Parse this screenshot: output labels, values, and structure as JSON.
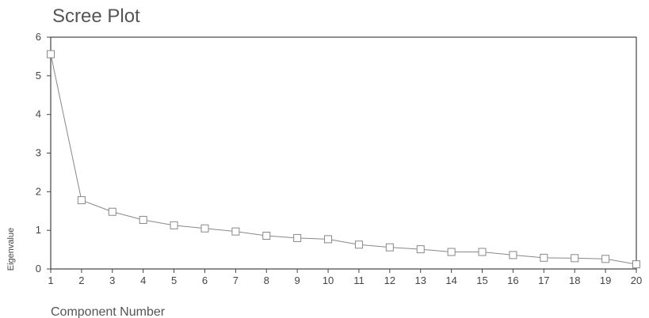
{
  "chart_data": {
    "type": "line",
    "title": "Scree Plot",
    "xlabel": "Component Number",
    "ylabel": "Eigenvalue",
    "x": [
      1,
      2,
      3,
      4,
      5,
      6,
      7,
      8,
      9,
      10,
      11,
      12,
      13,
      14,
      15,
      16,
      17,
      18,
      19,
      20
    ],
    "series": [
      {
        "values": [
          5.56,
          1.78,
          1.48,
          1.27,
          1.13,
          1.05,
          0.97,
          0.86,
          0.8,
          0.77,
          0.63,
          0.56,
          0.51,
          0.44,
          0.44,
          0.36,
          0.29,
          0.28,
          0.26,
          0.12
        ]
      }
    ],
    "xticks": [
      "1",
      "2",
      "3",
      "4",
      "5",
      "6",
      "7",
      "8",
      "9",
      "10",
      "11",
      "12",
      "13",
      "14",
      "15",
      "16",
      "17",
      "18",
      "19",
      "20"
    ],
    "yticks": [
      "0",
      "1",
      "2",
      "3",
      "4",
      "5",
      "6"
    ],
    "xlim": [
      1,
      20
    ],
    "ylim": [
      0,
      6
    ],
    "grid": false,
    "marker": "square",
    "line_color": "#888888",
    "axis_color": "#444444"
  }
}
